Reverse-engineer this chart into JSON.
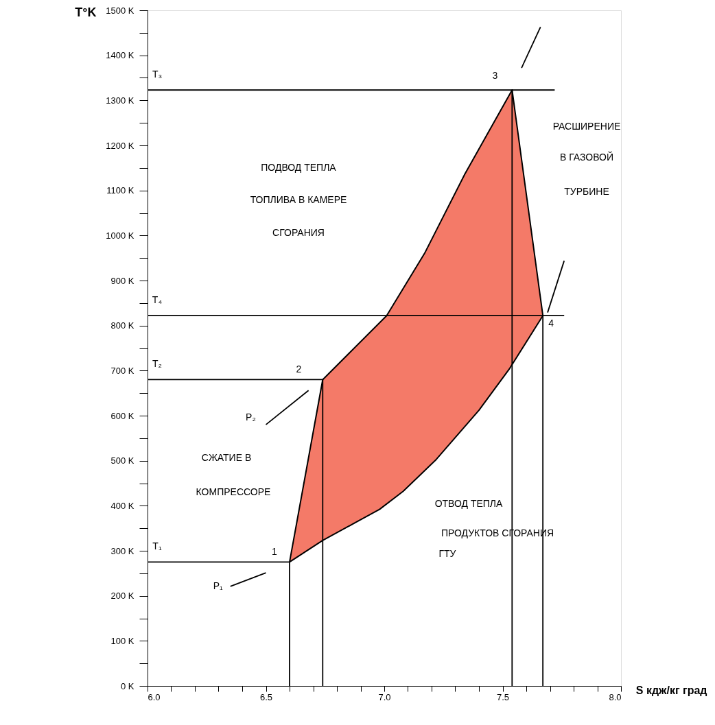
{
  "chart_data": {
    "type": "line",
    "xlabel": "S кдж/кг град",
    "ylabel": "T°K",
    "xlim": [
      6.0,
      8.0
    ],
    "ylim": [
      0,
      1500
    ],
    "xticks": [
      {
        "value": 6.0,
        "label": "6.0"
      },
      {
        "value": 6.1,
        "label": null
      },
      {
        "value": 6.2,
        "label": null
      },
      {
        "value": 6.3,
        "label": null
      },
      {
        "value": 6.4,
        "label": null
      },
      {
        "value": 6.5,
        "label": "6.5"
      },
      {
        "value": 6.6,
        "label": null
      },
      {
        "value": 6.7,
        "label": null
      },
      {
        "value": 6.8,
        "label": null
      },
      {
        "value": 6.9,
        "label": null
      },
      {
        "value": 7.0,
        "label": "7.0"
      },
      {
        "value": 7.1,
        "label": null
      },
      {
        "value": 7.2,
        "label": null
      },
      {
        "value": 7.3,
        "label": null
      },
      {
        "value": 7.4,
        "label": null
      },
      {
        "value": 7.5,
        "label": "7.5"
      },
      {
        "value": 7.6,
        "label": null
      },
      {
        "value": 7.7,
        "label": null
      },
      {
        "value": 7.8,
        "label": null
      },
      {
        "value": 7.9,
        "label": null
      },
      {
        "value": 8.0,
        "label": "8.0"
      }
    ],
    "yticks": [
      {
        "value": 0,
        "label": "0 K"
      },
      {
        "value": 50,
        "label": null
      },
      {
        "value": 100,
        "label": "100 K"
      },
      {
        "value": 150,
        "label": null
      },
      {
        "value": 200,
        "label": "200 K"
      },
      {
        "value": 250,
        "label": null
      },
      {
        "value": 300,
        "label": "300 K"
      },
      {
        "value": 350,
        "label": null
      },
      {
        "value": 400,
        "label": "400 K"
      },
      {
        "value": 450,
        "label": null
      },
      {
        "value": 500,
        "label": "500 K"
      },
      {
        "value": 550,
        "label": null
      },
      {
        "value": 600,
        "label": "600 K"
      },
      {
        "value": 650,
        "label": null
      },
      {
        "value": 700,
        "label": "700 K"
      },
      {
        "value": 750,
        "label": null
      },
      {
        "value": 800,
        "label": "800 K"
      },
      {
        "value": 850,
        "label": null
      },
      {
        "value": 900,
        "label": "900 K"
      },
      {
        "value": 950,
        "label": null
      },
      {
        "value": 1000,
        "label": "1000 K"
      },
      {
        "value": 1050,
        "label": null
      },
      {
        "value": 1100,
        "label": "1100 K"
      },
      {
        "value": 1150,
        "label": null
      },
      {
        "value": 1200,
        "label": "1200 K"
      },
      {
        "value": 1250,
        "label": null
      },
      {
        "value": 1300,
        "label": "1300 K"
      },
      {
        "value": 1350,
        "label": null
      },
      {
        "value": 1400,
        "label": "1400 K"
      },
      {
        "value": 1450,
        "label": null
      },
      {
        "value": 1500,
        "label": "1500 K"
      }
    ],
    "grid": false,
    "series": [
      {
        "type": "area",
        "color": "#f47a68",
        "x": [
          6.6,
          6.74,
          7.01,
          7.17,
          7.34,
          7.54,
          7.67,
          7.53,
          7.4,
          7.22,
          7.08,
          6.98,
          6.74,
          6.6
        ],
        "values": [
          275,
          680,
          822,
          960,
          1136,
          1323,
          822,
          705,
          612,
          503,
          432,
          392,
          323,
          275
        ]
      },
      {
        "color": "#000000",
        "x": [
          6.0,
          7.72
        ],
        "values": [
          1323,
          1323
        ]
      },
      {
        "color": "#000000",
        "x": [
          6.0,
          7.76
        ],
        "values": [
          822,
          822
        ]
      },
      {
        "color": "#000000",
        "x": [
          6.0,
          6.74
        ],
        "values": [
          680,
          680
        ]
      },
      {
        "color": "#000000",
        "x": [
          6.0,
          6.6
        ],
        "values": [
          275,
          275
        ]
      },
      {
        "color": "#000000",
        "x": [
          6.6,
          6.6
        ],
        "values": [
          0,
          275
        ]
      },
      {
        "color": "#000000",
        "x": [
          6.74,
          6.74
        ],
        "values": [
          0,
          680
        ]
      },
      {
        "color": "#000000",
        "x": [
          7.54,
          7.54
        ],
        "values": [
          0,
          1323
        ]
      },
      {
        "color": "#000000",
        "x": [
          7.67,
          7.67
        ],
        "values": [
          0,
          822
        ]
      },
      {
        "color": "#000000",
        "x": [
          6.35,
          6.5
        ],
        "values": [
          221,
          251
        ]
      },
      {
        "color": "#000000",
        "x": [
          6.5,
          6.68
        ],
        "values": [
          580,
          656
        ]
      },
      {
        "color": "#000000",
        "x": [
          7.58,
          7.66
        ],
        "values": [
          1372,
          1463
        ]
      },
      {
        "color": "#000000",
        "x": [
          7.69,
          7.76
        ],
        "values": [
          829,
          944
        ]
      }
    ],
    "annotations": [
      "ПОДВОД ТЕПЛА",
      "ТОПЛИВА В КАМЕРЕ",
      "СГОРАНИЯ",
      "РАСШИРЕНИЕ",
      "В ГАЗОВОЙ",
      "ТУРБИНЕ",
      "СЖАТИЕ В",
      "КОМПРЕССОРЕ",
      "ОТВОД ТЕПЛА",
      "ПРОДУКТОВ СГОРАНИЯ",
      "ГТУ",
      {
        "text": "1",
        "x": 6.6,
        "y": 275
      },
      {
        "text": "2",
        "x": 6.74,
        "y": 680
      },
      {
        "text": "3",
        "x": 7.54,
        "y": 1323
      },
      {
        "text": "4",
        "x": 7.67,
        "y": 822
      },
      {
        "text": "T₁",
        "x": 6.0,
        "y": 275
      },
      {
        "text": "T₂",
        "x": 6.0,
        "y": 680
      },
      {
        "text": "T₃",
        "x": 6.0,
        "y": 1323
      },
      {
        "text": "T₄",
        "x": 6.0,
        "y": 822
      },
      {
        "text": "P₁",
        "x": 6.35,
        "y": 221
      },
      {
        "text": "P₂",
        "x": 6.5,
        "y": 580
      }
    ]
  }
}
